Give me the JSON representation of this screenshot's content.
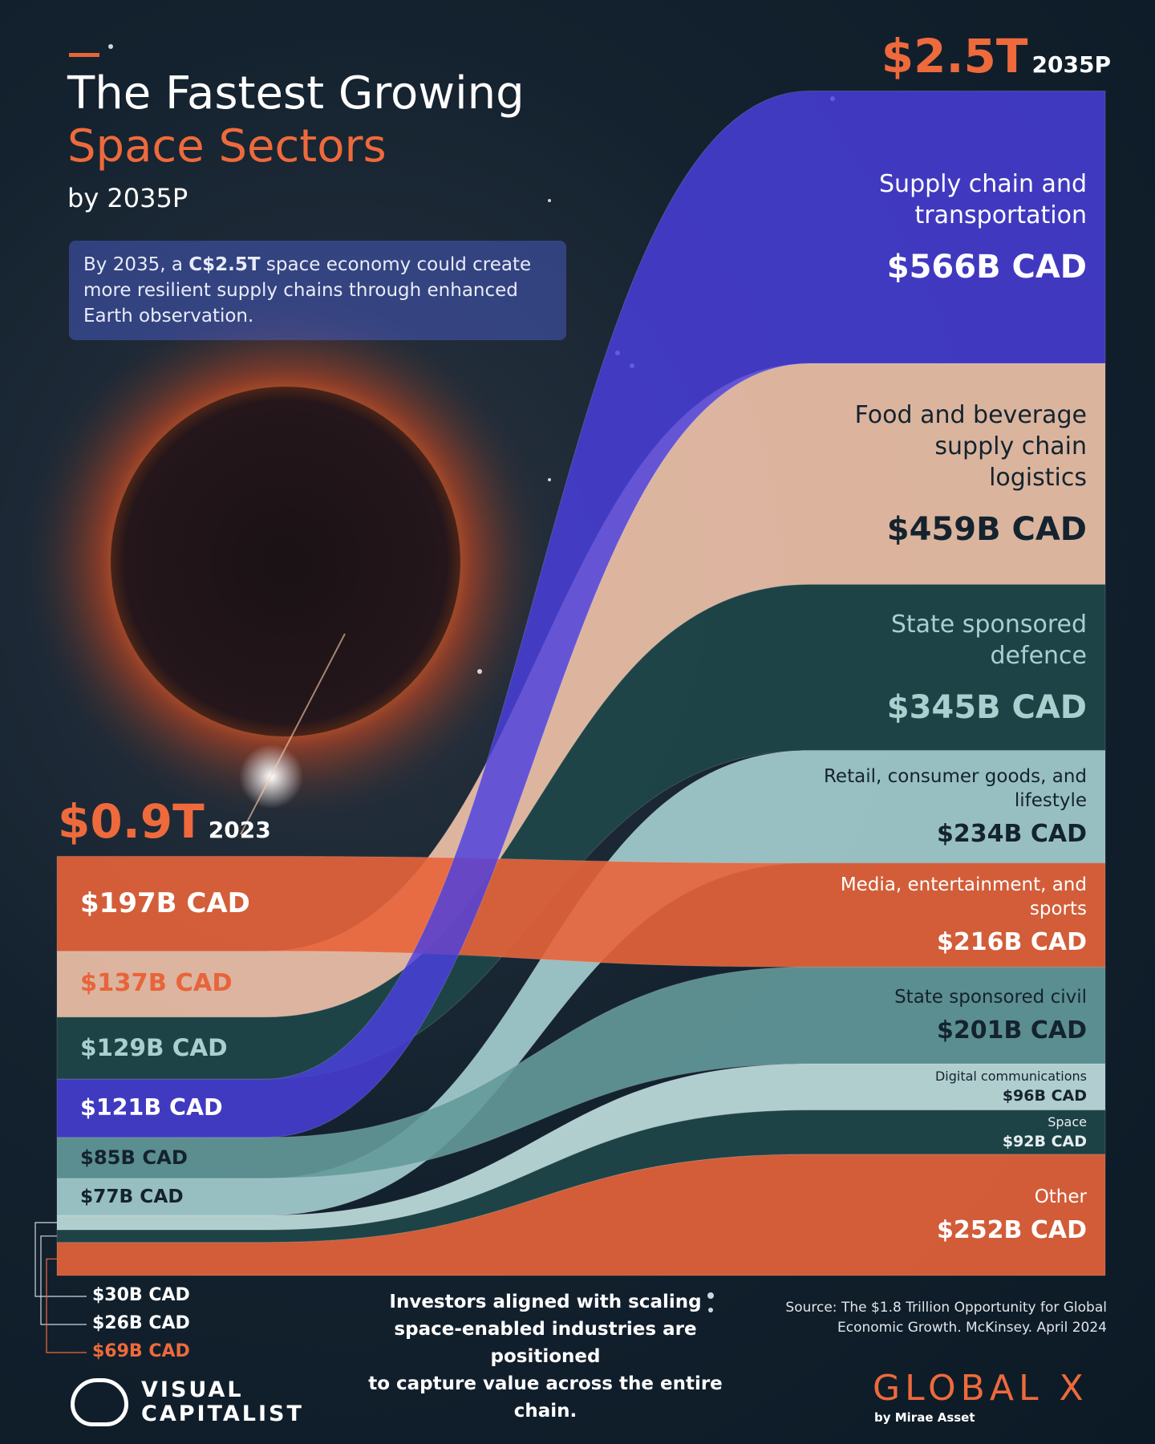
{
  "chart_data": {
    "type": "flow",
    "title": "The Fastest Growing",
    "title_accent": "Space Sectors",
    "subtitle": "by 2035P",
    "intro": [
      "By 2035, a ",
      "C$2.5T",
      " space economy could create more resilient supply chains through enhanced Earth observation."
    ],
    "x": [
      "2023",
      "2035P"
    ],
    "totals": [
      0.9,
      2.5
    ],
    "totals_labels": [
      "$0.9T",
      "$2.5T"
    ],
    "series": [
      {
        "name": "Media, entertainment, and sports",
        "color": "#e8643a",
        "label_colors": [
          "#ffffff",
          "#ffffff"
        ],
        "values": [
          197,
          216
        ],
        "value_labels": [
          "$197B CAD",
          "$216B CAD"
        ]
      },
      {
        "name": "Food and beverage supply chain logistics",
        "color": "#f2c4ab",
        "label_colors": [
          "#e8643a",
          "#14232e"
        ],
        "values": [
          137,
          459
        ],
        "value_labels": [
          "$137B CAD",
          "$459B CAD"
        ]
      },
      {
        "name": "State sponsored defence",
        "color": "#1f4749",
        "label_colors": [
          "#a9d0cf",
          "#a9d0cf"
        ],
        "values": [
          129,
          345
        ],
        "value_labels": [
          "$129B CAD",
          "$345B CAD"
        ]
      },
      {
        "name": "Supply chain and transportation",
        "color": "#4a3fe0",
        "label_colors": [
          "#ffffff",
          "#ffffff"
        ],
        "values": [
          121,
          566
        ],
        "value_labels": [
          "$121B CAD",
          "$566B CAD"
        ]
      },
      {
        "name": "State sponsored civil",
        "color": "#649a9b",
        "label_colors": [
          "#14232e",
          "#14232e"
        ],
        "values": [
          85,
          201
        ],
        "value_labels": [
          "$85B CAD",
          "$201B CAD"
        ]
      },
      {
        "name": "Retail, consumer goods, and lifestyle",
        "color": "#a6d0d1",
        "label_colors": [
          "#14232e",
          "#14232e"
        ],
        "values": [
          77,
          234
        ],
        "value_labels": [
          "$77B CAD",
          "$234B CAD"
        ]
      },
      {
        "name": "Digital communications",
        "color": "#c3e1e1",
        "label_colors": [
          "#ffffff",
          "#14232e"
        ],
        "values": [
          30,
          96
        ],
        "value_labels": [
          "$30B CAD",
          "$96B CAD"
        ]
      },
      {
        "name": "Space",
        "color": "#1f4749",
        "label_colors": [
          "#ffffff",
          "#e6eef0"
        ],
        "values": [
          26,
          92
        ],
        "value_labels": [
          "$26B CAD",
          "$92B CAD"
        ]
      },
      {
        "name": "Other",
        "color": "#e8643a",
        "label_colors": [
          "#ee6a3c",
          "#ffffff"
        ],
        "values": [
          69,
          252
        ],
        "value_labels": [
          "$69B CAD",
          "$252B CAD"
        ]
      }
    ],
    "note": [
      "Investors aligned with scaling",
      "space-enabled industries are positioned",
      "to capture value across the entire chain."
    ],
    "source": [
      "Source: The $1.8 Trillion Opportunity for Global",
      "Economic Growth. McKinsey. April 2024"
    ],
    "logos": [
      [
        "VISUAL",
        "CAPITALIST"
      ],
      [
        "GLOBAL X",
        "by Mirae Asset"
      ]
    ]
  }
}
